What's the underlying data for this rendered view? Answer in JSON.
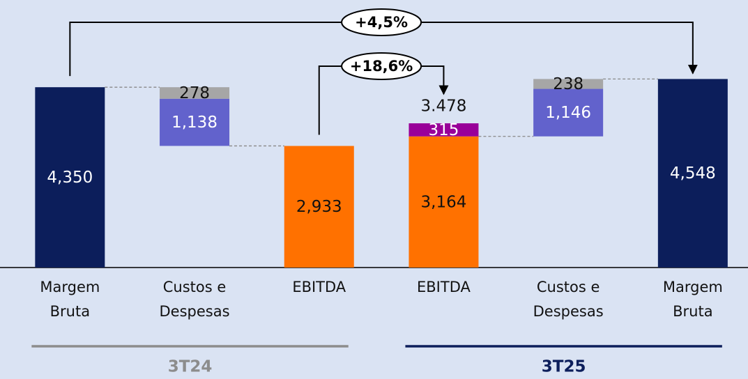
{
  "chart_data": {
    "type": "waterfall",
    "ylim": [
      0,
      5000
    ],
    "bars": [
      {
        "kind": "total",
        "category": [
          "Margem",
          "Bruta"
        ],
        "segments": [
          {
            "value": 4350,
            "label": "4,350",
            "color": "#0c1e5b"
          }
        ]
      },
      {
        "kind": "down",
        "category": [
          "Custos e",
          "Despesas"
        ],
        "segments": [
          {
            "value": 1138,
            "label": "1,138",
            "color": "#6262cc"
          },
          {
            "value": 278,
            "label": "278",
            "color": "#a6a6a6"
          }
        ]
      },
      {
        "kind": "total",
        "category": [
          "EBITDA"
        ],
        "segments": [
          {
            "value": 2933,
            "label": "2,933",
            "color": "#ff7100"
          }
        ]
      },
      {
        "kind": "total",
        "category": [
          "EBITDA"
        ],
        "segments": [
          {
            "value": 3164,
            "label": "3,164",
            "color": "#ff7100"
          },
          {
            "value": 315,
            "label": "315",
            "color": "#990099"
          }
        ],
        "total": 3478,
        "total_label": "3.478"
      },
      {
        "kind": "up",
        "category": [
          "Custos e",
          "Despesas"
        ],
        "segments": [
          {
            "value": 1146,
            "label": "1,146",
            "color": "#6262cc"
          },
          {
            "value": 238,
            "label": "238",
            "color": "#a6a6a6"
          }
        ]
      },
      {
        "kind": "total",
        "category": [
          "Margem",
          "Bruta"
        ],
        "segments": [
          {
            "value": 4548,
            "label": "4,548",
            "color": "#0c1e5b"
          }
        ]
      }
    ],
    "annotations": [
      {
        "text": "+4,5%",
        "from": 0,
        "to": 5
      },
      {
        "text": "+18,6%",
        "from": 2,
        "to": 3
      }
    ],
    "groups": [
      {
        "label": "3T24",
        "from": 0,
        "to": 2,
        "color": "#8c8c8c"
      },
      {
        "label": "3T25",
        "from": 3,
        "to": 5,
        "color": "#0c1e5b"
      }
    ]
  }
}
